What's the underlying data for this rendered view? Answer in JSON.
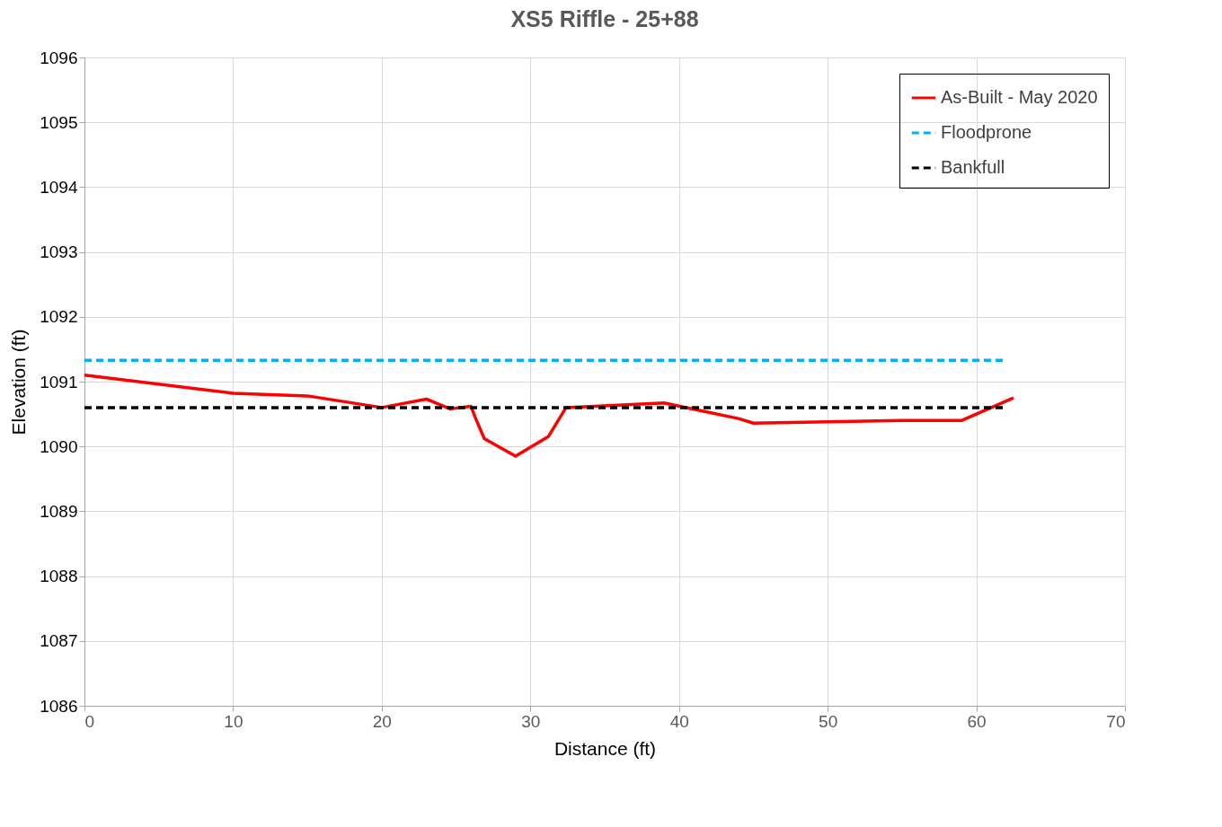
{
  "chart_data": {
    "type": "line",
    "title": "XS5 Riffle - 25+88",
    "xlabel": "Distance (ft)",
    "ylabel": "Elevation (ft)",
    "xlim": [
      0,
      70
    ],
    "xticks": [
      0,
      10,
      20,
      30,
      40,
      50,
      60,
      70
    ],
    "ylim": [
      1086,
      1096
    ],
    "yticks": [
      1086,
      1087,
      1088,
      1089,
      1090,
      1091,
      1092,
      1093,
      1094,
      1095,
      1096
    ],
    "grid": true,
    "legend": "top right",
    "marker": "none",
    "series": [
      {
        "name": "As-Built - May 2020",
        "color": "#ff0000",
        "line_style": "solid",
        "x": [
          0,
          10,
          15,
          20,
          23,
          24.6,
          26,
          26.3,
          26.9,
          29,
          31.2,
          32.4,
          39,
          44,
          45,
          50,
          55,
          59,
          62.5
        ],
        "values": [
          1091.1,
          1090.82,
          1090.78,
          1090.6,
          1090.73,
          1090.58,
          1090.62,
          1090.44,
          1090.12,
          1089.85,
          1090.15,
          1090.6,
          1090.67,
          1090.43,
          1090.36,
          1090.38,
          1090.4,
          1090.4,
          1090.75
        ]
      },
      {
        "name": "Floodprone",
        "color": "#00b0f0",
        "line_style": "dashed",
        "x": [
          0,
          61.8
        ],
        "values": [
          1091.33,
          1091.33
        ]
      },
      {
        "name": "Bankfull",
        "color": "#000000",
        "line_style": "dashed",
        "x": [
          0,
          61.8
        ],
        "values": [
          1090.6,
          1090.6
        ]
      }
    ]
  }
}
